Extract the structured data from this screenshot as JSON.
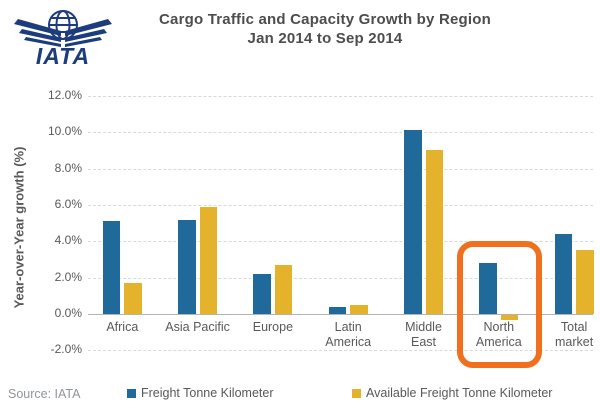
{
  "logo": {
    "text": "IATA",
    "color": "#1d3c7c"
  },
  "title": {
    "line1": "Cargo Traffic and Capacity Growth by Region",
    "line2": "Jan 2014 to Sep 2014"
  },
  "source": "Source: IATA",
  "legend": [
    {
      "label": "Freight Tonne Kilometer",
      "color": "#1f6a9b"
    },
    {
      "label": "Available Freight Tonne Kilometer",
      "color": "#e5b32b"
    }
  ],
  "highlight": {
    "region": "North America",
    "color": "#f0701d"
  },
  "chart_data": {
    "type": "bar",
    "title": "Cargo Traffic and Capacity Growth by Region Jan 2014 to Sep 2014",
    "ylabel": "Year-over-Year growth (%)",
    "xlabel": "",
    "categories": [
      "Africa",
      "Asia Pacific",
      "Europe",
      "Latin America",
      "Middle East",
      "North America",
      "Total market"
    ],
    "xtick_labels": [
      "Africa",
      "Asia Pacific",
      "Europe",
      "Latin\nAmerica",
      "Middle\nEast",
      "North\nAmerica",
      "Total\nmarket"
    ],
    "series": [
      {
        "name": "Freight Tonne Kilometer",
        "color": "#1f6a9b",
        "values": [
          5.1,
          5.2,
          2.2,
          0.4,
          10.1,
          2.8,
          4.4
        ]
      },
      {
        "name": "Available Freight Tonne Kilometer",
        "color": "#e5b32b",
        "values": [
          1.7,
          5.9,
          2.7,
          0.5,
          9.0,
          -0.3,
          3.5
        ]
      }
    ],
    "ylim": [
      -2,
      12
    ],
    "ytick_step": 2,
    "ytick_labels": [
      "12.0%",
      "10.0%",
      "8.0%",
      "6.0%",
      "4.0%",
      "2.0%",
      "0.0%",
      "-2.0%"
    ],
    "grid": "dashed horizontal",
    "legend_position": "bottom"
  }
}
